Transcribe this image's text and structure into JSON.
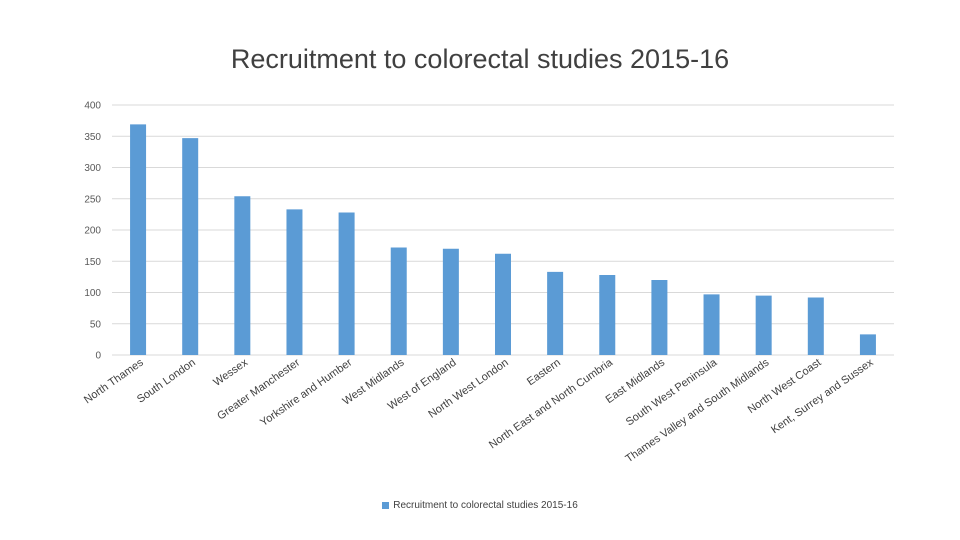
{
  "chart_data": {
    "type": "bar",
    "title": "Recruitment to colorectal studies 2015-16",
    "categories": [
      "North Thames",
      "South London",
      "Wessex",
      "Greater Manchester",
      "Yorkshire and Humber",
      "West Midlands",
      "West of England",
      "North West London",
      "Eastern",
      "North East and North Cumbria",
      "East Midlands",
      "South West Peninsula",
      "Thames Valley and South Midlands",
      "North West Coast",
      "Kent, Surrey and Sussex"
    ],
    "series": [
      {
        "name": "Recruitment to colorectal studies 2015-16",
        "values": [
          369,
          347,
          254,
          233,
          228,
          172,
          170,
          162,
          133,
          128,
          120,
          97,
          95,
          92,
          33
        ]
      }
    ],
    "ylim": [
      0,
      400
    ],
    "yticks": [
      0,
      50,
      100,
      150,
      200,
      250,
      300,
      350,
      400
    ],
    "grid": true,
    "legend_position": "bottom",
    "bar_color": "#5b9bd5"
  }
}
